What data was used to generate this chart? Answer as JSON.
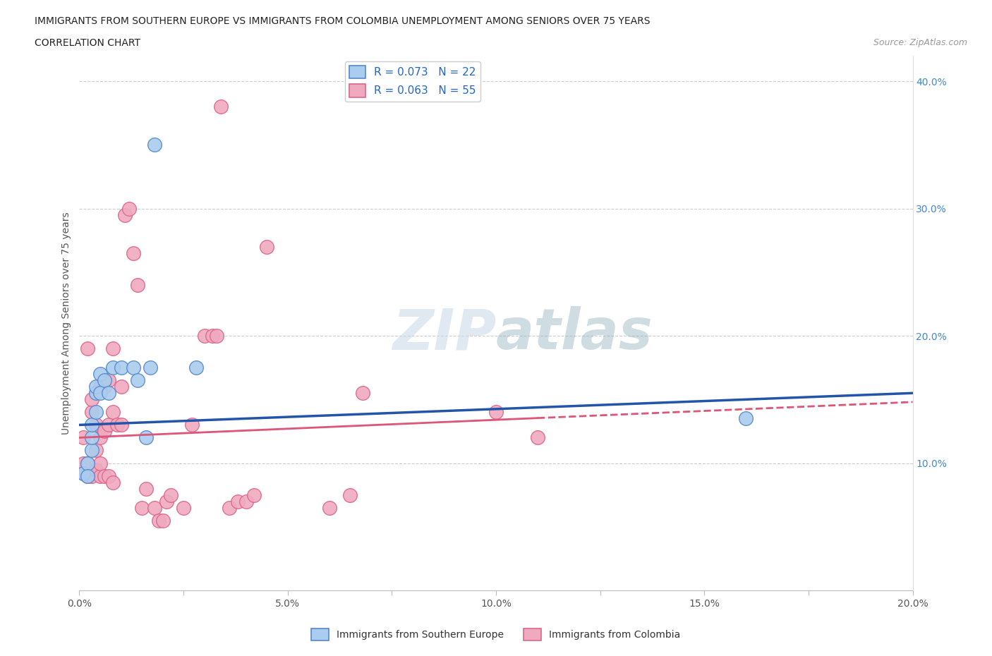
{
  "title_line1": "IMMIGRANTS FROM SOUTHERN EUROPE VS IMMIGRANTS FROM COLOMBIA UNEMPLOYMENT AMONG SENIORS OVER 75 YEARS",
  "title_line2": "CORRELATION CHART",
  "source": "Source: ZipAtlas.com",
  "ylabel": "Unemployment Among Seniors over 75 years",
  "xlim": [
    0.0,
    0.2
  ],
  "ylim": [
    0.0,
    0.42
  ],
  "yticks": [
    0.0,
    0.1,
    0.2,
    0.3,
    0.4
  ],
  "xticks": [
    0.0,
    0.025,
    0.05,
    0.075,
    0.1,
    0.125,
    0.15,
    0.175,
    0.2
  ],
  "xtick_labels": [
    "0.0%",
    "",
    "5.0%",
    "",
    "10.0%",
    "",
    "15.0%",
    "",
    "20.0%"
  ],
  "ytick_labels": [
    "",
    "10.0%",
    "20.0%",
    "30.0%",
    "40.0%"
  ],
  "blue_R": 0.073,
  "blue_N": 22,
  "pink_R": 0.063,
  "pink_N": 55,
  "blue_label": "Immigrants from Southern Europe",
  "pink_label": "Immigrants from Colombia",
  "blue_color": "#aaccee",
  "pink_color": "#f0aabf",
  "blue_edge_color": "#5588cc",
  "pink_edge_color": "#dd6688",
  "blue_line_color": "#2255aa",
  "pink_line_color": "#dd5577",
  "watermark_color": "#ccd8e8",
  "background_color": "#ffffff",
  "blue_x": [
    0.001,
    0.002,
    0.002,
    0.003,
    0.003,
    0.003,
    0.004,
    0.004,
    0.004,
    0.005,
    0.005,
    0.006,
    0.007,
    0.008,
    0.01,
    0.013,
    0.014,
    0.016,
    0.017,
    0.018,
    0.028,
    0.16
  ],
  "blue_y": [
    0.092,
    0.1,
    0.09,
    0.11,
    0.12,
    0.13,
    0.14,
    0.155,
    0.16,
    0.155,
    0.17,
    0.165,
    0.155,
    0.175,
    0.175,
    0.175,
    0.165,
    0.12,
    0.175,
    0.35,
    0.175,
    0.135
  ],
  "pink_x": [
    0.001,
    0.001,
    0.001,
    0.002,
    0.002,
    0.002,
    0.003,
    0.003,
    0.003,
    0.004,
    0.004,
    0.004,
    0.005,
    0.005,
    0.005,
    0.005,
    0.006,
    0.006,
    0.006,
    0.007,
    0.007,
    0.007,
    0.008,
    0.008,
    0.008,
    0.009,
    0.01,
    0.01,
    0.011,
    0.012,
    0.013,
    0.014,
    0.015,
    0.016,
    0.018,
    0.019,
    0.02,
    0.021,
    0.022,
    0.025,
    0.027,
    0.03,
    0.032,
    0.033,
    0.034,
    0.036,
    0.038,
    0.04,
    0.042,
    0.045,
    0.06,
    0.065,
    0.068,
    0.1,
    0.11
  ],
  "pink_y": [
    0.092,
    0.1,
    0.12,
    0.09,
    0.1,
    0.19,
    0.09,
    0.14,
    0.15,
    0.095,
    0.11,
    0.13,
    0.09,
    0.1,
    0.12,
    0.16,
    0.09,
    0.125,
    0.16,
    0.09,
    0.13,
    0.165,
    0.085,
    0.14,
    0.19,
    0.13,
    0.13,
    0.16,
    0.295,
    0.3,
    0.265,
    0.24,
    0.065,
    0.08,
    0.065,
    0.055,
    0.055,
    0.07,
    0.075,
    0.065,
    0.13,
    0.2,
    0.2,
    0.2,
    0.38,
    0.065,
    0.07,
    0.07,
    0.075,
    0.27,
    0.065,
    0.075,
    0.155,
    0.14,
    0.12
  ],
  "blue_line_start_y": 0.13,
  "blue_line_end_y": 0.155,
  "pink_line_start_y": 0.12,
  "pink_line_end_y": 0.148
}
